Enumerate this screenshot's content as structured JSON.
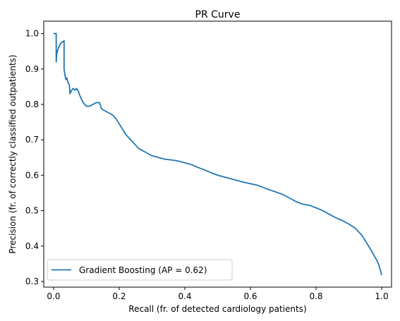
{
  "colors": {
    "series": "#1f77b4",
    "axes": "#000000",
    "legend_border": "#cccccc",
    "background": "#ffffff"
  },
  "chart_data": {
    "type": "line",
    "title": "PR Curve",
    "xlabel": "Recall (fr. of detected cardiology patients)",
    "ylabel": "Precision (fr. of correctly classified outpatients)",
    "xlim": [
      -0.03,
      1.03
    ],
    "ylim": [
      0.284,
      1.035
    ],
    "grid": false,
    "legend_position": "lower-left",
    "xticks": [
      {
        "value": 0.0,
        "label": "0.0"
      },
      {
        "value": 0.2,
        "label": "0.2"
      },
      {
        "value": 0.4,
        "label": "0.4"
      },
      {
        "value": 0.6,
        "label": "0.6"
      },
      {
        "value": 0.8,
        "label": "0.8"
      },
      {
        "value": 1.0,
        "label": "1.0"
      }
    ],
    "yticks": [
      {
        "value": 0.3,
        "label": "0.3"
      },
      {
        "value": 0.4,
        "label": "0.4"
      },
      {
        "value": 0.5,
        "label": "0.5"
      },
      {
        "value": 0.6,
        "label": "0.6"
      },
      {
        "value": 0.7,
        "label": "0.7"
      },
      {
        "value": 0.8,
        "label": "0.8"
      },
      {
        "value": 0.9,
        "label": "0.9"
      },
      {
        "value": 1.0,
        "label": "1.0"
      }
    ],
    "series": [
      {
        "name": "Gradient Boosting (AP = 0.62)",
        "x": [
          0.0,
          0.008,
          0.008,
          0.01,
          0.015,
          0.02,
          0.025,
          0.03,
          0.032,
          0.032,
          0.035,
          0.038,
          0.04,
          0.045,
          0.048,
          0.05,
          0.055,
          0.06,
          0.065,
          0.07,
          0.075,
          0.08,
          0.085,
          0.09,
          0.095,
          0.1,
          0.11,
          0.12,
          0.13,
          0.14,
          0.145,
          0.15,
          0.16,
          0.17,
          0.18,
          0.19,
          0.2,
          0.22,
          0.24,
          0.26,
          0.28,
          0.3,
          0.32,
          0.34,
          0.36,
          0.38,
          0.4,
          0.42,
          0.44,
          0.46,
          0.48,
          0.5,
          0.52,
          0.54,
          0.56,
          0.58,
          0.6,
          0.62,
          0.64,
          0.66,
          0.68,
          0.7,
          0.72,
          0.74,
          0.76,
          0.78,
          0.8,
          0.82,
          0.84,
          0.86,
          0.88,
          0.9,
          0.92,
          0.94,
          0.95,
          0.96,
          0.97,
          0.98,
          0.985,
          0.99,
          0.995,
          1.0
        ],
        "y": [
          1.0,
          1.0,
          0.92,
          0.945,
          0.96,
          0.97,
          0.975,
          0.978,
          0.98,
          0.9,
          0.88,
          0.87,
          0.875,
          0.86,
          0.855,
          0.83,
          0.84,
          0.845,
          0.84,
          0.845,
          0.838,
          0.825,
          0.815,
          0.805,
          0.8,
          0.795,
          0.795,
          0.8,
          0.805,
          0.805,
          0.79,
          0.785,
          0.78,
          0.775,
          0.77,
          0.76,
          0.745,
          0.715,
          0.695,
          0.675,
          0.665,
          0.655,
          0.65,
          0.645,
          0.643,
          0.64,
          0.635,
          0.63,
          0.622,
          0.615,
          0.607,
          0.6,
          0.595,
          0.59,
          0.585,
          0.58,
          0.576,
          0.572,
          0.565,
          0.558,
          0.552,
          0.545,
          0.535,
          0.525,
          0.518,
          0.515,
          0.508,
          0.5,
          0.49,
          0.48,
          0.472,
          0.462,
          0.45,
          0.43,
          0.415,
          0.4,
          0.385,
          0.368,
          0.36,
          0.35,
          0.335,
          0.318
        ]
      }
    ]
  }
}
